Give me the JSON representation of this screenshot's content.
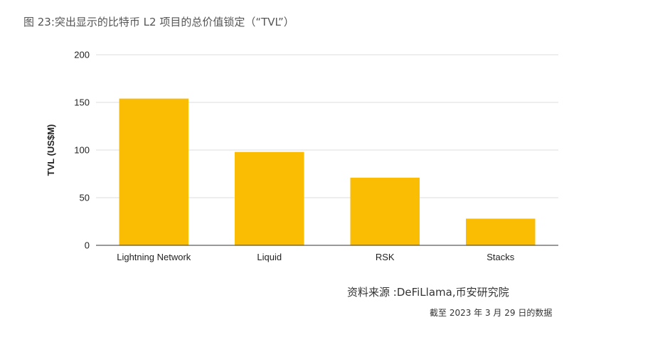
{
  "figure": {
    "title": "图 23:突出显示的比特币 L2 项目的总价值锁定（“TVL”）",
    "source": "资料来源 :DeFiLlama,币安研究院",
    "date_note": "截至 2023 年 3 月 29 日的数据"
  },
  "chart_data": {
    "type": "bar",
    "categories": [
      "Lightning Network",
      "Liquid",
      "RSK",
      "Stacks"
    ],
    "values": [
      154,
      98,
      71,
      28
    ],
    "xlabel": "",
    "ylabel": "TVL (US$M)",
    "ylim": [
      0,
      200
    ],
    "yticks": [
      0,
      50,
      100,
      150,
      200
    ],
    "grid": true,
    "legend": "none",
    "bar_color": "#FBBC04"
  }
}
